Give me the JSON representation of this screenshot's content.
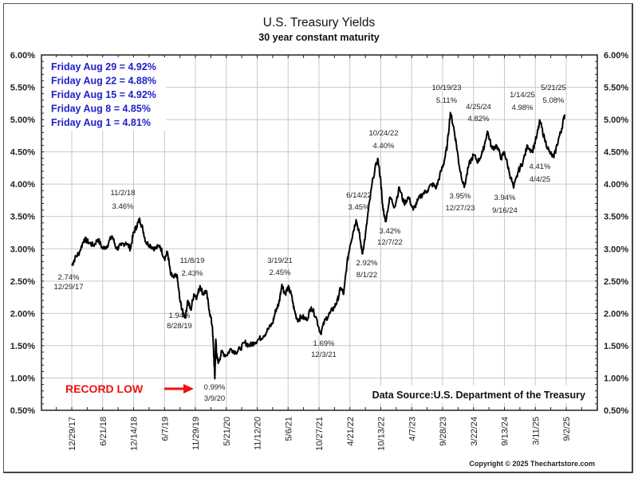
{
  "chart_data": {
    "type": "line",
    "title": "U.S. Treasury Yields",
    "subtitle": "30 year constant maturity",
    "xlabel": "",
    "ylabel": "",
    "ylim": [
      0.5,
      6.0
    ],
    "yticks": [
      "0.50%",
      "1.00%",
      "1.50%",
      "2.00%",
      "2.50%",
      "3.00%",
      "3.50%",
      "4.00%",
      "4.50%",
      "5.00%",
      "5.50%",
      "6.00%"
    ],
    "ytick_values": [
      0.5,
      1.0,
      1.5,
      2.0,
      2.5,
      3.0,
      3.5,
      4.0,
      4.5,
      5.0,
      5.5,
      6.0
    ],
    "xticks": [
      "12/29/17",
      "6/21/18",
      "12/14/18",
      "6/7/19",
      "11/29/19",
      "5/21/20",
      "11/12/20",
      "5/6/21",
      "10/27/21",
      "4/21/22",
      "10/13/22",
      "4/7/23",
      "9/28/23",
      "3/22/24",
      "9/13/24",
      "3/11/25",
      "9/2/25"
    ],
    "grid": true,
    "series": [
      {
        "name": "30 Year Treasury Yield",
        "x_index": [
          0,
          0.1,
          0.25,
          0.4,
          0.55,
          0.7,
          0.85,
          1.0,
          1.15,
          1.3,
          1.45,
          1.6,
          1.75,
          1.9,
          2.0,
          2.1,
          2.2,
          2.3,
          2.4,
          2.55,
          2.7,
          2.85,
          3.0,
          3.1,
          3.2,
          3.3,
          3.4,
          3.5,
          3.6,
          3.68,
          3.75,
          3.85,
          3.95,
          4.05,
          4.15,
          4.25,
          4.35,
          4.45,
          4.55,
          4.6,
          4.63,
          4.66,
          4.7,
          4.75,
          4.85,
          5.0,
          5.15,
          5.3,
          5.45,
          5.6,
          5.75,
          5.9,
          6.05,
          6.2,
          6.35,
          6.5,
          6.6,
          6.7,
          6.8,
          6.9,
          7.0,
          7.1,
          7.2,
          7.3,
          7.45,
          7.6,
          7.75,
          7.9,
          8.05,
          8.2,
          8.35,
          8.5,
          8.6,
          8.7,
          8.8,
          8.9,
          9.0,
          9.1,
          9.2,
          9.3,
          9.4,
          9.5,
          9.6,
          9.75,
          9.9,
          10.0,
          10.05,
          10.15,
          10.3,
          10.45,
          10.6,
          10.75,
          10.9,
          11.05,
          11.2,
          11.35,
          11.5,
          11.65,
          11.8,
          11.95,
          12.05,
          12.15,
          12.25,
          12.35,
          12.45,
          12.55,
          12.7,
          12.85,
          13.0,
          13.15,
          13.3,
          13.45,
          13.6,
          13.75,
          13.9,
          14.0,
          14.15,
          14.3,
          14.45,
          14.6,
          14.75,
          14.9,
          15.05,
          15.15,
          15.3,
          15.45,
          15.6,
          15.75,
          15.85,
          15.95
        ],
        "values": [
          2.74,
          2.85,
          2.95,
          3.15,
          3.1,
          3.05,
          3.15,
          3.0,
          3.05,
          3.2,
          3.0,
          3.05,
          3.1,
          3.0,
          3.25,
          3.35,
          3.46,
          3.3,
          3.1,
          3.05,
          3.0,
          3.05,
          2.85,
          2.95,
          2.6,
          2.55,
          2.6,
          2.2,
          2.0,
          1.94,
          2.2,
          2.05,
          2.3,
          2.25,
          2.43,
          2.3,
          2.35,
          2.05,
          1.8,
          1.3,
          0.99,
          1.6,
          1.3,
          1.25,
          1.4,
          1.35,
          1.45,
          1.4,
          1.45,
          1.55,
          1.5,
          1.55,
          1.6,
          1.65,
          1.75,
          1.85,
          2.05,
          2.15,
          2.45,
          2.3,
          2.4,
          2.3,
          2.05,
          1.9,
          1.95,
          1.9,
          2.1,
          1.95,
          1.69,
          1.9,
          2.0,
          2.1,
          2.2,
          2.4,
          2.3,
          2.75,
          3.05,
          3.25,
          3.45,
          3.25,
          2.92,
          3.2,
          3.6,
          4.1,
          4.4,
          4.05,
          3.7,
          3.42,
          3.8,
          3.65,
          3.95,
          3.7,
          3.8,
          3.6,
          3.75,
          3.85,
          3.9,
          4.0,
          3.95,
          4.2,
          4.35,
          4.6,
          5.11,
          4.9,
          4.6,
          4.25,
          3.95,
          4.3,
          4.45,
          4.35,
          4.5,
          4.82,
          4.55,
          4.6,
          4.4,
          4.5,
          4.2,
          3.94,
          4.2,
          4.35,
          4.6,
          4.5,
          4.75,
          4.98,
          4.7,
          4.5,
          4.41,
          4.7,
          4.85,
          5.08,
          4.9,
          4.85
        ]
      }
    ],
    "annotations": [
      {
        "date": "12/29/17",
        "value": "2.74%"
      },
      {
        "date": "11/2/18",
        "value": "3.46%"
      },
      {
        "date": "8/28/19",
        "value": "1.94%"
      },
      {
        "date": "11/8/19",
        "value": "2.43%"
      },
      {
        "date": "3/9/20",
        "value": "0.99%"
      },
      {
        "date": "3/19/21",
        "value": "2.45%"
      },
      {
        "date": "12/3/21",
        "value": "1.69%"
      },
      {
        "date": "6/14/22",
        "value": "3.45%"
      },
      {
        "date": "8/1/22",
        "value": "2.92%"
      },
      {
        "date": "10/24/22",
        "value": "4.40%"
      },
      {
        "date": "12/7/22",
        "value": "3.42%"
      },
      {
        "date": "10/19/23",
        "value": "5.11%"
      },
      {
        "date": "12/27/23",
        "value": "3.95%"
      },
      {
        "date": "4/25/24",
        "value": "4.82%"
      },
      {
        "date": "9/16/24",
        "value": "3.94%"
      },
      {
        "date": "1/14/25",
        "value": "4.98%"
      },
      {
        "date": "4/4/25",
        "value": "4.41%"
      },
      {
        "date": "5/21/25",
        "value": "5.08%"
      }
    ],
    "weekly_readings": [
      "Friday Aug 29 = 4.92%",
      "Friday Aug 22 = 4.88%",
      "Friday Aug 15 = 4.92%",
      "Friday Aug 8 = 4.85%",
      "Friday Aug 1 = 4.81%"
    ],
    "record_low_label": "RECORD LOW",
    "data_source": "Data Source:U.S. Department of the Treasury",
    "copyright": "Copyright © 2025 Thechartstore.com",
    "legend": "none"
  },
  "colors": {
    "line": "#000000",
    "weekly_text": "#2020cc",
    "record_low": "#ee1111",
    "grid": "#c8c8c8"
  }
}
